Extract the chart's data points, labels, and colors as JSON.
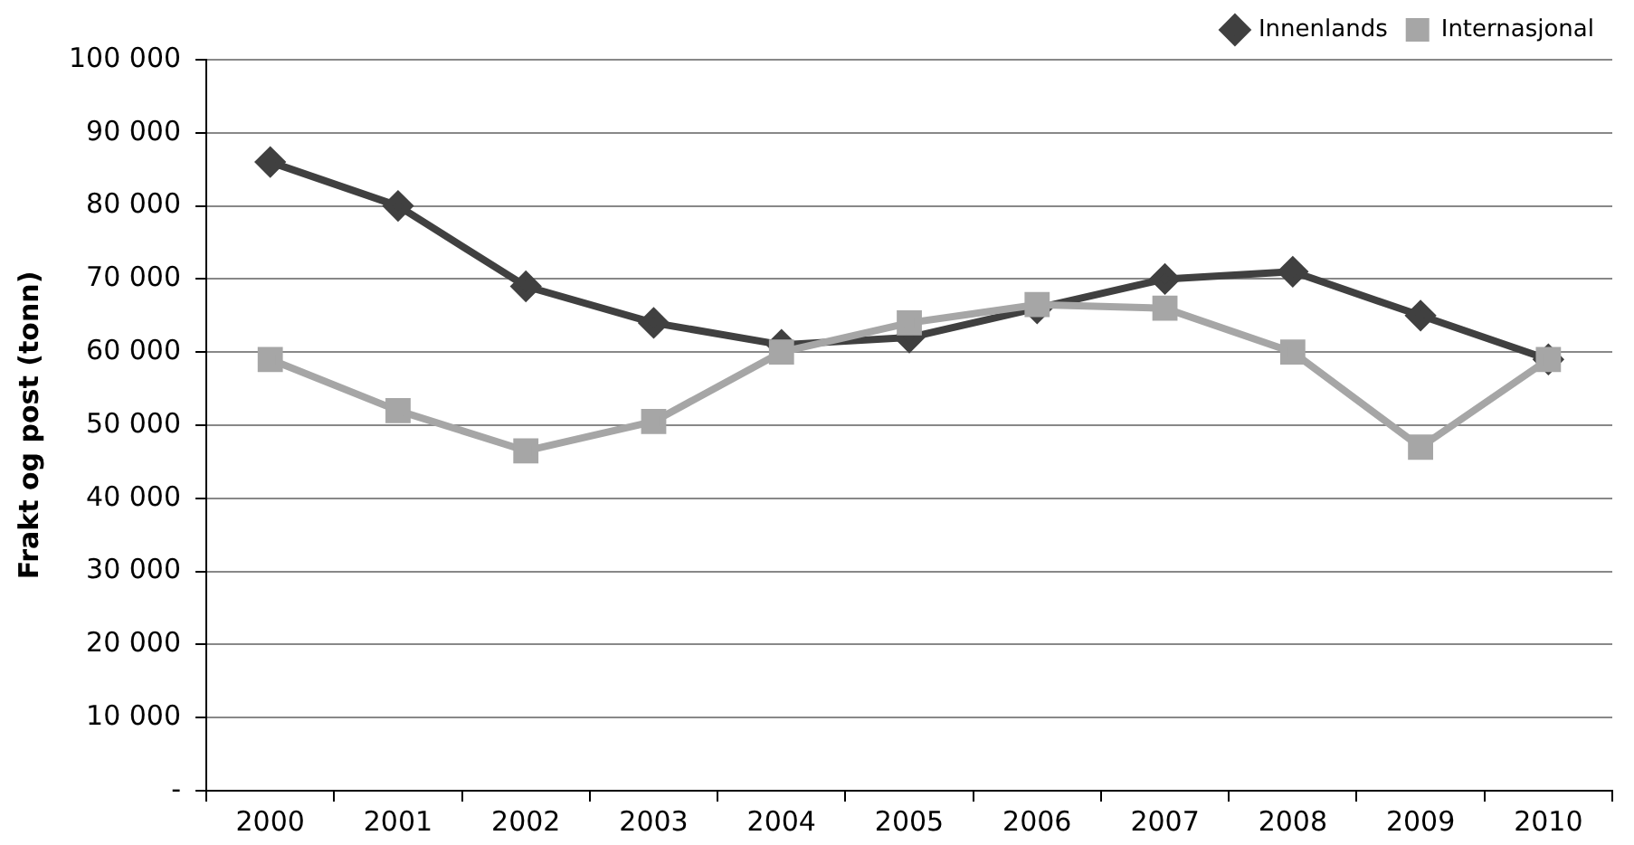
{
  "chart_data": {
    "type": "line",
    "ylabel": "Frakt og post (tonn)",
    "categories": [
      "2000",
      "2001",
      "2002",
      "2003",
      "2004",
      "2005",
      "2006",
      "2007",
      "2008",
      "2009",
      "2010"
    ],
    "series": [
      {
        "name": "Innenlands",
        "color": "#404040",
        "marker": "diamond",
        "values": [
          86000,
          80000,
          69000,
          64000,
          61000,
          62000,
          66000,
          70000,
          71000,
          65000,
          59000
        ]
      },
      {
        "name": "Internasjonal",
        "color": "#a6a6a6",
        "marker": "square",
        "values": [
          59000,
          52000,
          46500,
          50500,
          60000,
          64000,
          66500,
          66000,
          60000,
          47000,
          59000
        ]
      }
    ],
    "ylim": [
      0,
      100000
    ],
    "yticks": [
      {
        "value": 0,
        "label": "-"
      },
      {
        "value": 10000,
        "label": "10 000"
      },
      {
        "value": 20000,
        "label": "20 000"
      },
      {
        "value": 30000,
        "label": "30 000"
      },
      {
        "value": 40000,
        "label": "40 000"
      },
      {
        "value": 50000,
        "label": "50 000"
      },
      {
        "value": 60000,
        "label": "60 000"
      },
      {
        "value": 70000,
        "label": "70 000"
      },
      {
        "value": 80000,
        "label": "80 000"
      },
      {
        "value": 90000,
        "label": "90 000"
      },
      {
        "value": 100000,
        "label": "100 000"
      }
    ],
    "grid": "y",
    "legend": "top right"
  }
}
